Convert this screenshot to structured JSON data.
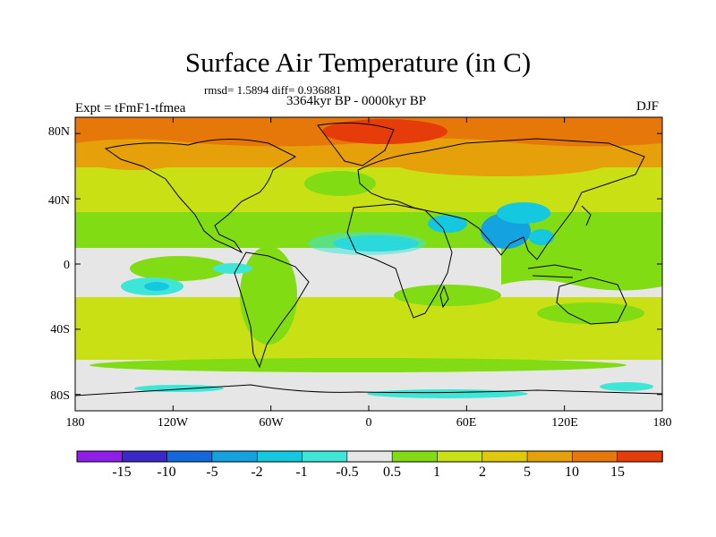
{
  "title": "Surface Air Temperature (in C)",
  "stats": "rmsd= 1.5894 diff= 0.936881",
  "period": "3364kyr BP - 0000kyr BP",
  "experiment": "Expt = tFmF1-tfmea",
  "season": "DJF",
  "y_axis": {
    "labels": [
      "80N",
      "40N",
      "0",
      "40S",
      "80S"
    ],
    "values": [
      80,
      40,
      0,
      -40,
      -80
    ]
  },
  "x_axis": {
    "labels": [
      "180",
      "120W",
      "60W",
      "0",
      "60E",
      "120E",
      "180"
    ],
    "values": [
      -180,
      -120,
      -60,
      0,
      60,
      120,
      180
    ]
  },
  "colorbar": {
    "labels": [
      "-15",
      "-10",
      "-5",
      "-2",
      "-1",
      "-0.5",
      "0.5",
      "1",
      "2",
      "5",
      "10",
      "15"
    ],
    "colors": [
      "#8f1fe8",
      "#3a29c8",
      "#1468dc",
      "#14a2e0",
      "#14c8e0",
      "#3ee6d8",
      "#e6e6e6",
      "#82dc14",
      "#c8e014",
      "#e0c80a",
      "#e6a00a",
      "#e6780a",
      "#e63c0a"
    ]
  },
  "field_colors": {
    "neutral": "#e6e6e6",
    "slight_warm": "#82dc14",
    "warm": "#c8e014",
    "warmer": "#e0c80a",
    "hot": "#e6a00a",
    "hotter": "#e6780a",
    "hottest": "#e63c0a",
    "slight_cool": "#3ee6d8",
    "cool": "#14c8e0",
    "cooler": "#14a2e0"
  }
}
